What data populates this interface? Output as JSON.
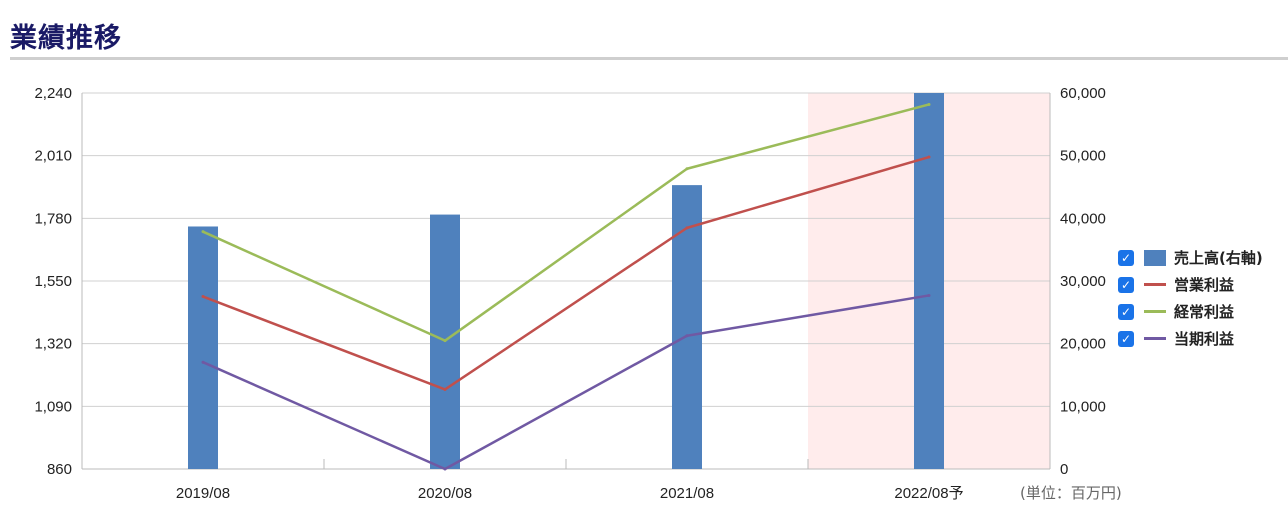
{
  "title": "業績推移",
  "unit_note": "(単位：百万円)",
  "chart_data": {
    "type": "bar+line",
    "categories": [
      "2019/08",
      "2020/08",
      "2021/08",
      "2022/08予"
    ],
    "forecast_category_index": 3,
    "left_axis": {
      "ticks": [
        "860",
        "1,090",
        "1,320",
        "1,550",
        "1,780",
        "2,010",
        "2,240"
      ],
      "min": 860,
      "max": 2240
    },
    "right_axis": {
      "ticks": [
        "0",
        "10,000",
        "20,000",
        "30,000",
        "40,000",
        "50,000",
        "60,000"
      ],
      "min": 0,
      "max": 60000
    },
    "bar_series": {
      "name": "売上高(右軸)",
      "axis": "right",
      "color": "#4f81bd",
      "values": [
        38700,
        40600,
        45300,
        60000
      ]
    },
    "line_series": [
      {
        "name": "営業利益",
        "axis": "left",
        "color": "#c0504d",
        "values": [
          1493,
          1152,
          1745,
          2005
        ]
      },
      {
        "name": "経常利益",
        "axis": "left",
        "color": "#9bbb59",
        "values": [
          1731,
          1331,
          1962,
          2198
        ]
      },
      {
        "name": "当期利益",
        "axis": "left",
        "color": "#7059a3",
        "values": [
          1252,
          860,
          1349,
          1497
        ]
      }
    ],
    "grid": true,
    "legend_position": "right"
  }
}
